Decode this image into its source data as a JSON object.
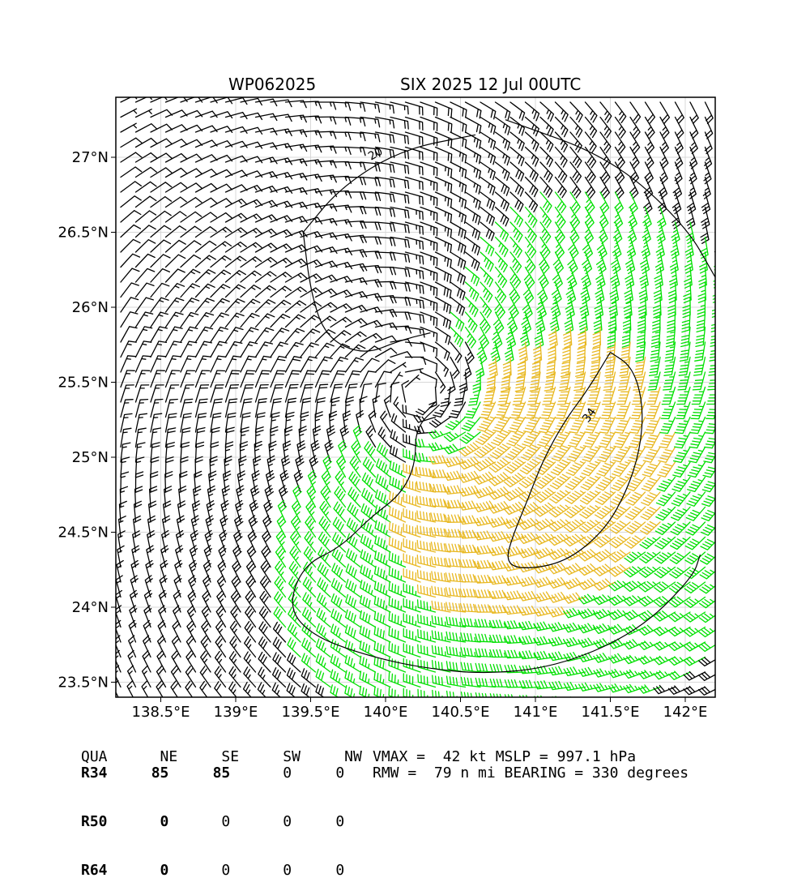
{
  "header": {
    "storm_id": "WP062025",
    "storm_time": "SIX 2025 12 Jul 00UTC"
  },
  "chart_data": {
    "type": "wind-barb-map",
    "xlim": [
      138.2,
      142.2
    ],
    "ylim": [
      23.4,
      27.4
    ],
    "x_ticks": [
      138.5,
      139,
      139.5,
      140,
      140.5,
      141,
      141.5,
      142
    ],
    "x_tick_labels": [
      "138.5°E",
      "139°E",
      "139.5°E",
      "140°E",
      "140.5°E",
      "141°E",
      "141.5°E",
      "142°E"
    ],
    "y_ticks": [
      23.5,
      24,
      24.5,
      25,
      25.5,
      26,
      26.5,
      27
    ],
    "y_tick_labels": [
      "23.5°N",
      "24°N",
      "24.5°N",
      "25°N",
      "25.5°N",
      "26°N",
      "26.5°N",
      "27°N"
    ],
    "grid": true,
    "center": {
      "lon": 140.22,
      "lat": 25.42
    },
    "barb_colors": {
      "below_34kt": "#000000",
      "34_to_50kt": "#00e000",
      "50_to_64kt": "#e8b820"
    },
    "contour_labels": [
      "20",
      "34"
    ],
    "contours": [
      {
        "level": 20,
        "points": [
          [
            140.8,
            27.25
          ],
          [
            141.5,
            27.0
          ],
          [
            142.0,
            26.55
          ],
          [
            142.2,
            26.2
          ]
        ]
      },
      {
        "level": 20,
        "points": [
          [
            139.45,
            26.5
          ],
          [
            139.7,
            26.8
          ],
          [
            140.1,
            27.05
          ],
          [
            140.6,
            27.15
          ]
        ]
      },
      {
        "level": 20,
        "points": [
          [
            139.45,
            26.5
          ],
          [
            139.5,
            26.1
          ],
          [
            139.6,
            25.8
          ],
          [
            139.85,
            25.68
          ],
          [
            140.1,
            25.78
          ],
          [
            140.3,
            25.83
          ]
        ]
      },
      {
        "level": 20,
        "points": [
          [
            140.36,
            25.35
          ],
          [
            140.2,
            25.2
          ],
          [
            140.2,
            24.95
          ],
          [
            140.1,
            24.75
          ],
          [
            139.9,
            24.6
          ],
          [
            139.7,
            24.4
          ],
          [
            139.45,
            24.28
          ],
          [
            139.35,
            24.0
          ],
          [
            139.5,
            23.82
          ],
          [
            139.8,
            23.7
          ],
          [
            140.2,
            23.6
          ],
          [
            140.7,
            23.55
          ],
          [
            141.2,
            23.62
          ],
          [
            141.7,
            23.85
          ],
          [
            142.05,
            24.2
          ],
          [
            142.1,
            24.35
          ]
        ]
      },
      {
        "level": 34,
        "points": [
          [
            141.5,
            25.7
          ],
          [
            141.35,
            25.45
          ],
          [
            141.2,
            25.25
          ],
          [
            141.05,
            24.98
          ],
          [
            140.95,
            24.72
          ],
          [
            140.85,
            24.48
          ],
          [
            140.8,
            24.3
          ],
          [
            140.92,
            24.25
          ],
          [
            141.2,
            24.3
          ],
          [
            141.45,
            24.5
          ],
          [
            141.6,
            24.75
          ],
          [
            141.7,
            25.05
          ],
          [
            141.72,
            25.35
          ],
          [
            141.65,
            25.6
          ],
          [
            141.5,
            25.7
          ]
        ]
      }
    ]
  },
  "radii_table": {
    "header": [
      "QUA",
      "NE",
      "SE",
      "SW",
      "NW"
    ],
    "rows": [
      {
        "label": "R34",
        "values": [
          "85",
          "85",
          "0",
          "0"
        ]
      },
      {
        "label": "R50",
        "values": [
          "0",
          "0",
          "0",
          "0"
        ]
      },
      {
        "label": "R64",
        "values": [
          "0",
          "0",
          "0",
          "0"
        ]
      }
    ]
  },
  "info": {
    "line1": "VMAX =  42 kt MSLP = 997.1 hPa",
    "line2": "RMW =  79 n mi BEARING = 330 degrees"
  }
}
